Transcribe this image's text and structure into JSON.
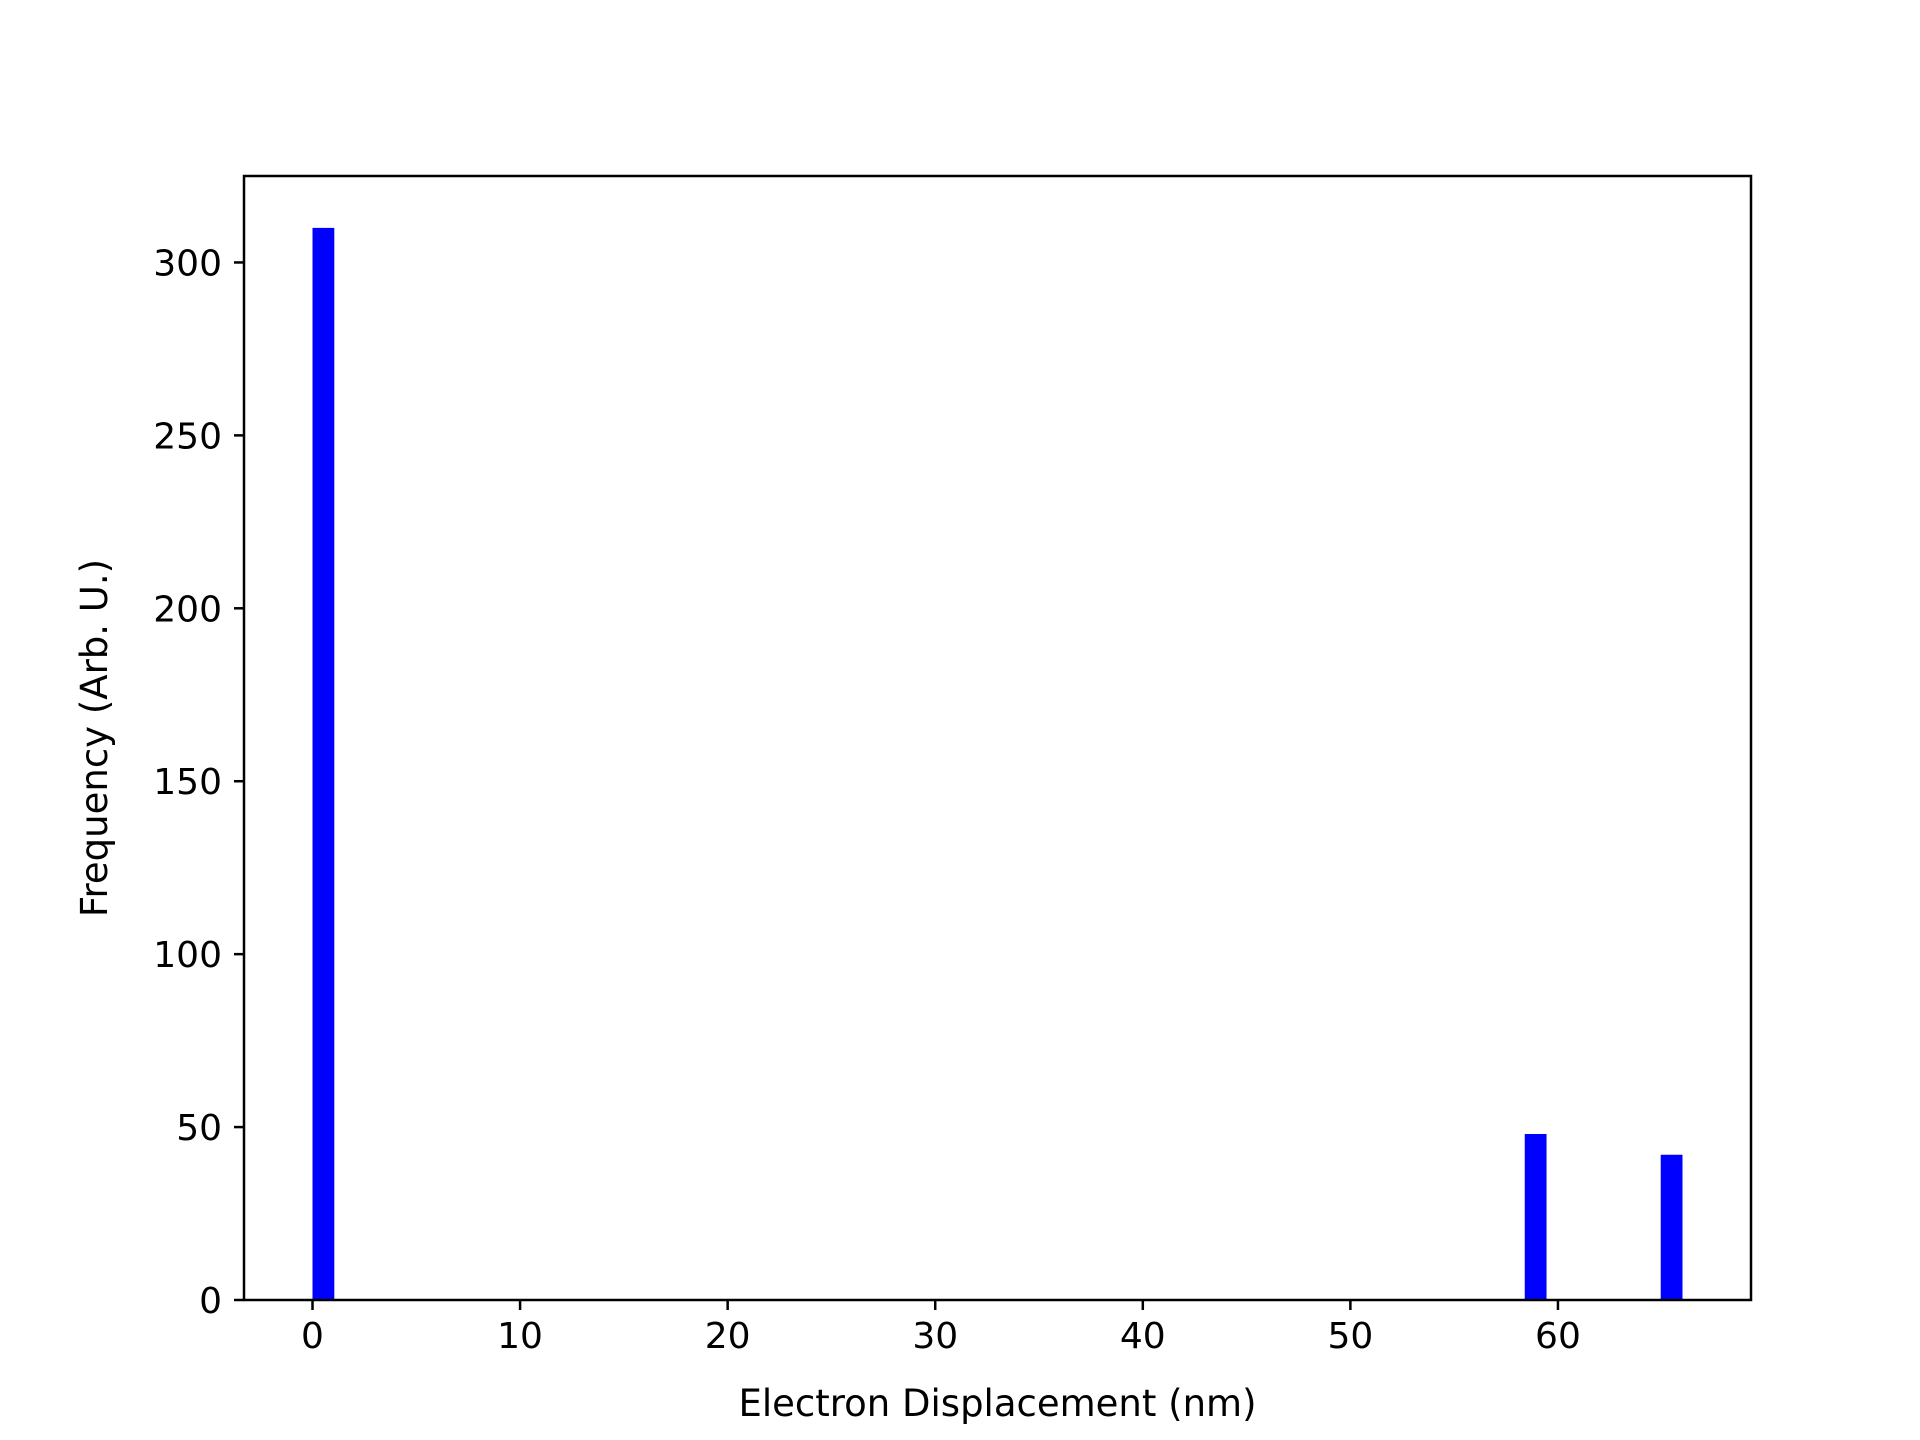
{
  "chart_data": {
    "type": "bar",
    "title": "",
    "xlabel": "Electron Displacement (nm)",
    "ylabel": "Frequency (Arb. U.)",
    "xlim": [
      -3.3,
      69.3
    ],
    "ylim": [
      0,
      325
    ],
    "xticks": [
      0,
      10,
      20,
      30,
      40,
      50,
      60
    ],
    "yticks": [
      0,
      50,
      100,
      150,
      200,
      250,
      300
    ],
    "grid": false,
    "legend": "none",
    "bar_color": "#0000ff",
    "bars": [
      {
        "x0": 0.0,
        "x1": 1.05,
        "value": 310
      },
      {
        "x0": 58.4,
        "x1": 59.45,
        "value": 48
      },
      {
        "x0": 64.95,
        "x1": 66.0,
        "value": 42
      }
    ]
  }
}
